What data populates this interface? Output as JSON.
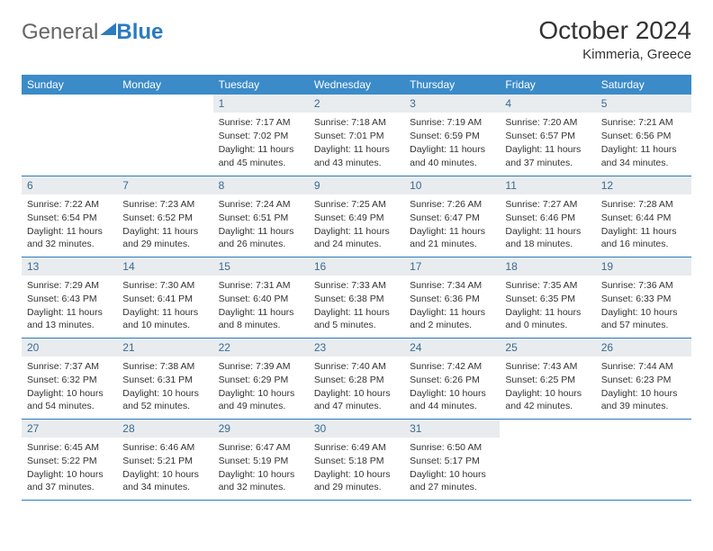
{
  "colors": {
    "header_bg": "#3b8bc9",
    "border": "#2b7bbf",
    "daynum_bg": "#e8ecef",
    "daynum_fg": "#3b6a8f",
    "text": "#333333",
    "logo_blue": "#2b7bbf",
    "logo_gray": "#666666",
    "background": "#ffffff"
  },
  "typography": {
    "month_fontsize": 28,
    "location_fontsize": 15,
    "header_fontsize": 12,
    "daynum_fontsize": 12,
    "body_fontsize": 10.5,
    "font_family": "Arial"
  },
  "logo": {
    "part1": "General",
    "part2": "Blue"
  },
  "month_title": "October 2024",
  "location": "Kimmeria, Greece",
  "day_names": [
    "Sunday",
    "Monday",
    "Tuesday",
    "Wednesday",
    "Thursday",
    "Friday",
    "Saturday"
  ],
  "labels": {
    "sunrise": "Sunrise:",
    "sunset": "Sunset:",
    "daylight": "Daylight:"
  },
  "weeks": [
    [
      null,
      null,
      {
        "n": "1",
        "sunrise": "7:17 AM",
        "sunset": "7:02 PM",
        "daylight": "11 hours and 45 minutes."
      },
      {
        "n": "2",
        "sunrise": "7:18 AM",
        "sunset": "7:01 PM",
        "daylight": "11 hours and 43 minutes."
      },
      {
        "n": "3",
        "sunrise": "7:19 AM",
        "sunset": "6:59 PM",
        "daylight": "11 hours and 40 minutes."
      },
      {
        "n": "4",
        "sunrise": "7:20 AM",
        "sunset": "6:57 PM",
        "daylight": "11 hours and 37 minutes."
      },
      {
        "n": "5",
        "sunrise": "7:21 AM",
        "sunset": "6:56 PM",
        "daylight": "11 hours and 34 minutes."
      }
    ],
    [
      {
        "n": "6",
        "sunrise": "7:22 AM",
        "sunset": "6:54 PM",
        "daylight": "11 hours and 32 minutes."
      },
      {
        "n": "7",
        "sunrise": "7:23 AM",
        "sunset": "6:52 PM",
        "daylight": "11 hours and 29 minutes."
      },
      {
        "n": "8",
        "sunrise": "7:24 AM",
        "sunset": "6:51 PM",
        "daylight": "11 hours and 26 minutes."
      },
      {
        "n": "9",
        "sunrise": "7:25 AM",
        "sunset": "6:49 PM",
        "daylight": "11 hours and 24 minutes."
      },
      {
        "n": "10",
        "sunrise": "7:26 AM",
        "sunset": "6:47 PM",
        "daylight": "11 hours and 21 minutes."
      },
      {
        "n": "11",
        "sunrise": "7:27 AM",
        "sunset": "6:46 PM",
        "daylight": "11 hours and 18 minutes."
      },
      {
        "n": "12",
        "sunrise": "7:28 AM",
        "sunset": "6:44 PM",
        "daylight": "11 hours and 16 minutes."
      }
    ],
    [
      {
        "n": "13",
        "sunrise": "7:29 AM",
        "sunset": "6:43 PM",
        "daylight": "11 hours and 13 minutes."
      },
      {
        "n": "14",
        "sunrise": "7:30 AM",
        "sunset": "6:41 PM",
        "daylight": "11 hours and 10 minutes."
      },
      {
        "n": "15",
        "sunrise": "7:31 AM",
        "sunset": "6:40 PM",
        "daylight": "11 hours and 8 minutes."
      },
      {
        "n": "16",
        "sunrise": "7:33 AM",
        "sunset": "6:38 PM",
        "daylight": "11 hours and 5 minutes."
      },
      {
        "n": "17",
        "sunrise": "7:34 AM",
        "sunset": "6:36 PM",
        "daylight": "11 hours and 2 minutes."
      },
      {
        "n": "18",
        "sunrise": "7:35 AM",
        "sunset": "6:35 PM",
        "daylight": "11 hours and 0 minutes."
      },
      {
        "n": "19",
        "sunrise": "7:36 AM",
        "sunset": "6:33 PM",
        "daylight": "10 hours and 57 minutes."
      }
    ],
    [
      {
        "n": "20",
        "sunrise": "7:37 AM",
        "sunset": "6:32 PM",
        "daylight": "10 hours and 54 minutes."
      },
      {
        "n": "21",
        "sunrise": "7:38 AM",
        "sunset": "6:31 PM",
        "daylight": "10 hours and 52 minutes."
      },
      {
        "n": "22",
        "sunrise": "7:39 AM",
        "sunset": "6:29 PM",
        "daylight": "10 hours and 49 minutes."
      },
      {
        "n": "23",
        "sunrise": "7:40 AM",
        "sunset": "6:28 PM",
        "daylight": "10 hours and 47 minutes."
      },
      {
        "n": "24",
        "sunrise": "7:42 AM",
        "sunset": "6:26 PM",
        "daylight": "10 hours and 44 minutes."
      },
      {
        "n": "25",
        "sunrise": "7:43 AM",
        "sunset": "6:25 PM",
        "daylight": "10 hours and 42 minutes."
      },
      {
        "n": "26",
        "sunrise": "7:44 AM",
        "sunset": "6:23 PM",
        "daylight": "10 hours and 39 minutes."
      }
    ],
    [
      {
        "n": "27",
        "sunrise": "6:45 AM",
        "sunset": "5:22 PM",
        "daylight": "10 hours and 37 minutes."
      },
      {
        "n": "28",
        "sunrise": "6:46 AM",
        "sunset": "5:21 PM",
        "daylight": "10 hours and 34 minutes."
      },
      {
        "n": "29",
        "sunrise": "6:47 AM",
        "sunset": "5:19 PM",
        "daylight": "10 hours and 32 minutes."
      },
      {
        "n": "30",
        "sunrise": "6:49 AM",
        "sunset": "5:18 PM",
        "daylight": "10 hours and 29 minutes."
      },
      {
        "n": "31",
        "sunrise": "6:50 AM",
        "sunset": "5:17 PM",
        "daylight": "10 hours and 27 minutes."
      },
      null,
      null
    ]
  ]
}
